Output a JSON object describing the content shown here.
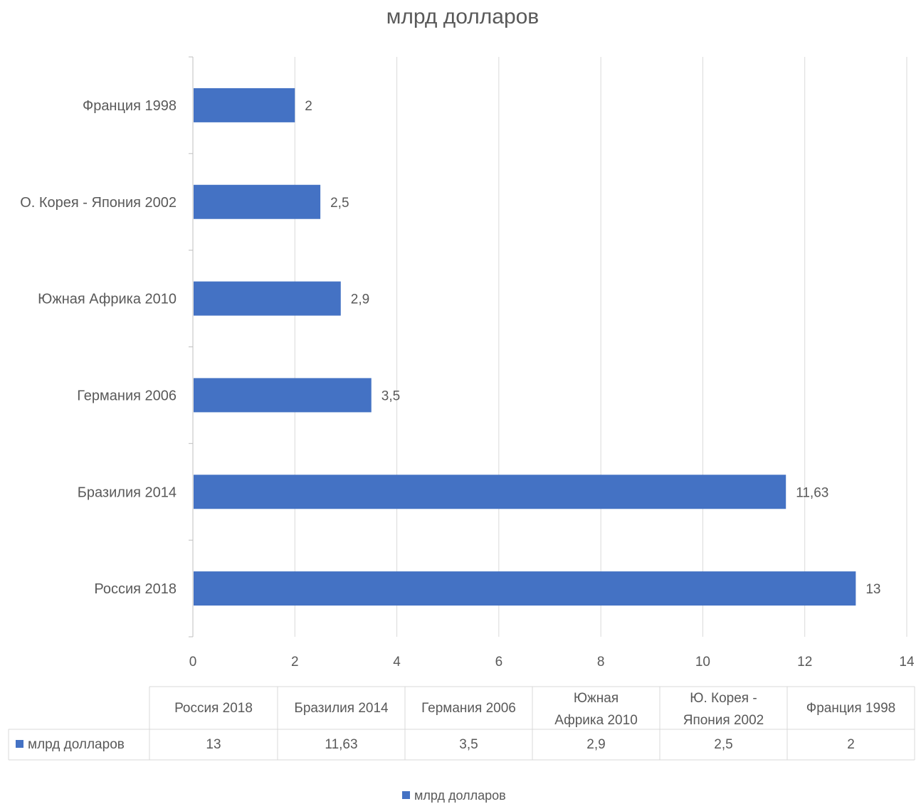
{
  "colors": {
    "bar": "#4472C4",
    "gridline": "#D9D9D9",
    "axis": "#BFBFBF",
    "text": "#595959",
    "table_border": "#D9D9D9"
  },
  "chart_data": {
    "type": "bar",
    "orientation": "horizontal",
    "title": "млрд долларов",
    "categories": [
      "Россия 2018",
      "Бразилия 2014",
      "Германия 2006",
      "Южная Африка 2010",
      "О. Корея - Япония 2002",
      "Франция 1998"
    ],
    "series": [
      {
        "name": "млрд долларов",
        "values": [
          13,
          11.63,
          3.5,
          2.9,
          2.5,
          2
        ],
        "labels": [
          "13",
          "11,63",
          "3,5",
          "2,9",
          "2,5",
          "2"
        ]
      }
    ],
    "xlim": [
      0,
      14
    ],
    "xticks": [
      0,
      2,
      4,
      6,
      8,
      10,
      12,
      14
    ],
    "grid": true,
    "legend": "bottom",
    "data_table": {
      "headers": [
        "Россия 2018",
        "Бразилия 2014",
        "Германия 2006",
        "Южная Африка 2010",
        "Ю. Корея - Япония 2002",
        "Франция 1998"
      ],
      "row_label": "млрд долларов",
      "values": [
        "13",
        "11,63",
        "3,5",
        "2,9",
        "2,5",
        "2"
      ]
    }
  }
}
